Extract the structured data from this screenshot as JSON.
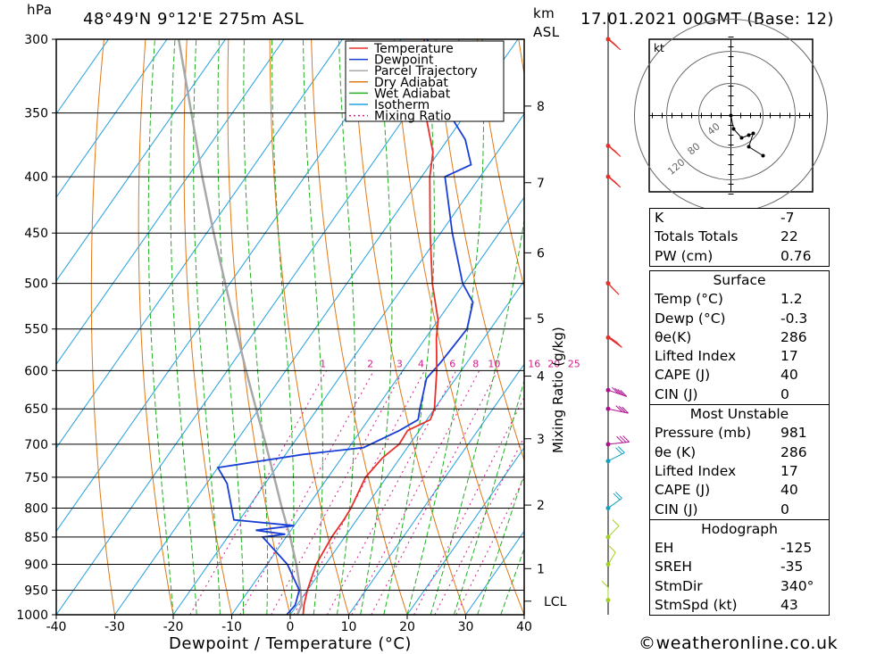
{
  "header": {
    "unit_left": "hPa",
    "location": "48°49'N 9°12'E 275m ASL",
    "unit_right": "km",
    "unit_right2": "ASL",
    "datetime": "17.01.2021 00GMT (Base: 12)"
  },
  "chart_data": {
    "type": "skew-t",
    "xlabel": "Dewpoint / Temperature (°C)",
    "mixing_ratio_axis_label": "Mixing Ratio (g/kg)",
    "x_ticks": [
      -40,
      -30,
      -20,
      -10,
      0,
      10,
      20,
      30,
      40
    ],
    "pressure_levels": [
      300,
      350,
      400,
      450,
      500,
      550,
      600,
      650,
      700,
      750,
      800,
      850,
      900,
      950,
      1000
    ],
    "height_km_ticks": [
      {
        "km": "1",
        "p": 908
      },
      {
        "km": "2",
        "p": 795
      },
      {
        "km": "3",
        "p": 692
      },
      {
        "km": "4",
        "p": 607
      },
      {
        "km": "5",
        "p": 538
      },
      {
        "km": "6",
        "p": 469
      },
      {
        "km": "7",
        "p": 405
      },
      {
        "km": "8",
        "p": 345
      }
    ],
    "lcl": {
      "label": "LCL",
      "p": 972
    },
    "mixing_ratio_labels": [
      "1",
      "2",
      "3",
      "4",
      "6",
      "8",
      "10",
      "16",
      "20",
      "25"
    ],
    "mixing_ratio_values": [
      1,
      2,
      3,
      4,
      6,
      8,
      10,
      16,
      20,
      25
    ],
    "legend": [
      "Temperature",
      "Dewpoint",
      "Parcel Trajectory",
      "Dry Adiabat",
      "Wet Adiabat",
      "Isotherm",
      "Mixing Ratio"
    ],
    "colors": {
      "temperature": "#e8302a",
      "dewpoint": "#1a3fd6",
      "parcel": "#a8a8a8",
      "dry_adiabat": "#e07818",
      "wet_adiabat": "#20b020",
      "isotherm": "#20a0e0",
      "mixing_ratio": "#d0208a"
    },
    "temperature_profile": [
      [
        1000,
        2.2
      ],
      [
        980,
        1.2
      ],
      [
        950,
        0.0
      ],
      [
        900,
        -1.6
      ],
      [
        850,
        -2.2
      ],
      [
        820,
        -2.2
      ],
      [
        800,
        -2.4
      ],
      [
        750,
        -3.6
      ],
      [
        720,
        -3.0
      ],
      [
        700,
        -1.8
      ],
      [
        680,
        -2.0
      ],
      [
        665,
        0.6
      ],
      [
        650,
        0.0
      ],
      [
        600,
        -4.2
      ],
      [
        560,
        -8.2
      ],
      [
        540,
        -10.0
      ],
      [
        500,
        -15.4
      ],
      [
        450,
        -21.8
      ],
      [
        400,
        -28.6
      ],
      [
        380,
        -31.0
      ],
      [
        350,
        -37.0
      ],
      [
        330,
        -42.0
      ],
      [
        300,
        -46.0
      ]
    ],
    "dewpoint_profile": [
      [
        1000,
        -0.6
      ],
      [
        980,
        -0.3
      ],
      [
        950,
        -1.4
      ],
      [
        900,
        -6.5
      ],
      [
        850,
        -14.0
      ],
      [
        845,
        -10.5
      ],
      [
        838,
        -16.0
      ],
      [
        830,
        -10.0
      ],
      [
        820,
        -21.0
      ],
      [
        760,
        -26.5
      ],
      [
        735,
        -30.0
      ],
      [
        715,
        -17.0
      ],
      [
        705,
        -7.5
      ],
      [
        680,
        -3.4
      ],
      [
        665,
        -1.5
      ],
      [
        650,
        -2.5
      ],
      [
        610,
        -5.0
      ],
      [
        590,
        -4.5
      ],
      [
        550,
        -4.0
      ],
      [
        520,
        -6.2
      ],
      [
        500,
        -10.2
      ],
      [
        450,
        -18.0
      ],
      [
        400,
        -26.0
      ],
      [
        390,
        -23.0
      ],
      [
        370,
        -27.0
      ],
      [
        350,
        -33.0
      ],
      [
        300,
        -45.5
      ]
    ],
    "parcel_profile": [
      [
        1000,
        1.2
      ],
      [
        980,
        0.8
      ],
      [
        950,
        -1.2
      ],
      [
        900,
        -5.0
      ],
      [
        850,
        -9.3
      ],
      [
        800,
        -14.2
      ],
      [
        750,
        -19.2
      ],
      [
        700,
        -24.6
      ],
      [
        650,
        -30.5
      ],
      [
        600,
        -36.8
      ],
      [
        550,
        -43.5
      ],
      [
        500,
        -50.8
      ],
      [
        450,
        -58.8
      ],
      [
        400,
        -67.5
      ],
      [
        350,
        -77.0
      ],
      [
        300,
        -88.0
      ]
    ],
    "wind_profile": [
      {
        "p": 300,
        "dir": 325,
        "kt": 70
      },
      {
        "p": 375,
        "dir": 325,
        "kt": 60
      },
      {
        "p": 400,
        "dir": 325,
        "kt": 55
      },
      {
        "p": 500,
        "dir": 330,
        "kt": 50
      },
      {
        "p": 560,
        "dir": 320,
        "kt": 45
      },
      {
        "p": 625,
        "dir": 300,
        "kt": 35
      },
      {
        "p": 650,
        "dir": 290,
        "kt": 30
      },
      {
        "p": 700,
        "dir": 260,
        "kt": 25
      },
      {
        "p": 725,
        "dir": 230,
        "kt": 20
      },
      {
        "p": 800,
        "dir": 220,
        "kt": 15
      },
      {
        "p": 850,
        "dir": 210,
        "kt": 12
      },
      {
        "p": 900,
        "dir": 200,
        "kt": 10
      },
      {
        "p": 970,
        "dir": 180,
        "kt": 5
      }
    ],
    "hodograph": {
      "unit": "kt",
      "ring_labels": [
        "40",
        "80",
        "120"
      ],
      "points": [
        [
          0,
          0
        ],
        [
          3,
          -15
        ],
        [
          12,
          -25
        ],
        [
          20,
          -22
        ],
        [
          25,
          -20
        ],
        [
          20,
          -35
        ],
        [
          36,
          -45
        ]
      ]
    }
  },
  "indices": {
    "rows": [
      {
        "key": "K",
        "val": "-7"
      },
      {
        "key": "Totals Totals",
        "val": "22"
      },
      {
        "key": "PW (cm)",
        "val": "0.76"
      }
    ]
  },
  "surface": {
    "title": "Surface",
    "rows": [
      {
        "key": "Temp (°C)",
        "val": "1.2"
      },
      {
        "key": "Dewp (°C)",
        "val": "-0.3"
      },
      {
        "key": "θe(K)",
        "val": "286"
      },
      {
        "key": "Lifted Index",
        "val": "17"
      },
      {
        "key": "CAPE (J)",
        "val": "40"
      },
      {
        "key": "CIN (J)",
        "val": "0"
      }
    ]
  },
  "most_unstable": {
    "title": "Most Unstable",
    "rows": [
      {
        "key": "Pressure (mb)",
        "val": "981"
      },
      {
        "key": "θe (K)",
        "val": "286"
      },
      {
        "key": "Lifted Index",
        "val": "17"
      },
      {
        "key": "CAPE (J)",
        "val": "40"
      },
      {
        "key": "CIN (J)",
        "val": "0"
      }
    ]
  },
  "hodograph_table": {
    "title": "Hodograph",
    "rows": [
      {
        "key": "EH",
        "val": "-125"
      },
      {
        "key": "SREH",
        "val": "-35"
      },
      {
        "key": "StmDir",
        "val": "340°"
      },
      {
        "key": "StmSpd (kt)",
        "val": "43"
      }
    ]
  },
  "footer": {
    "copyright": "©weatheronline.co.uk"
  }
}
